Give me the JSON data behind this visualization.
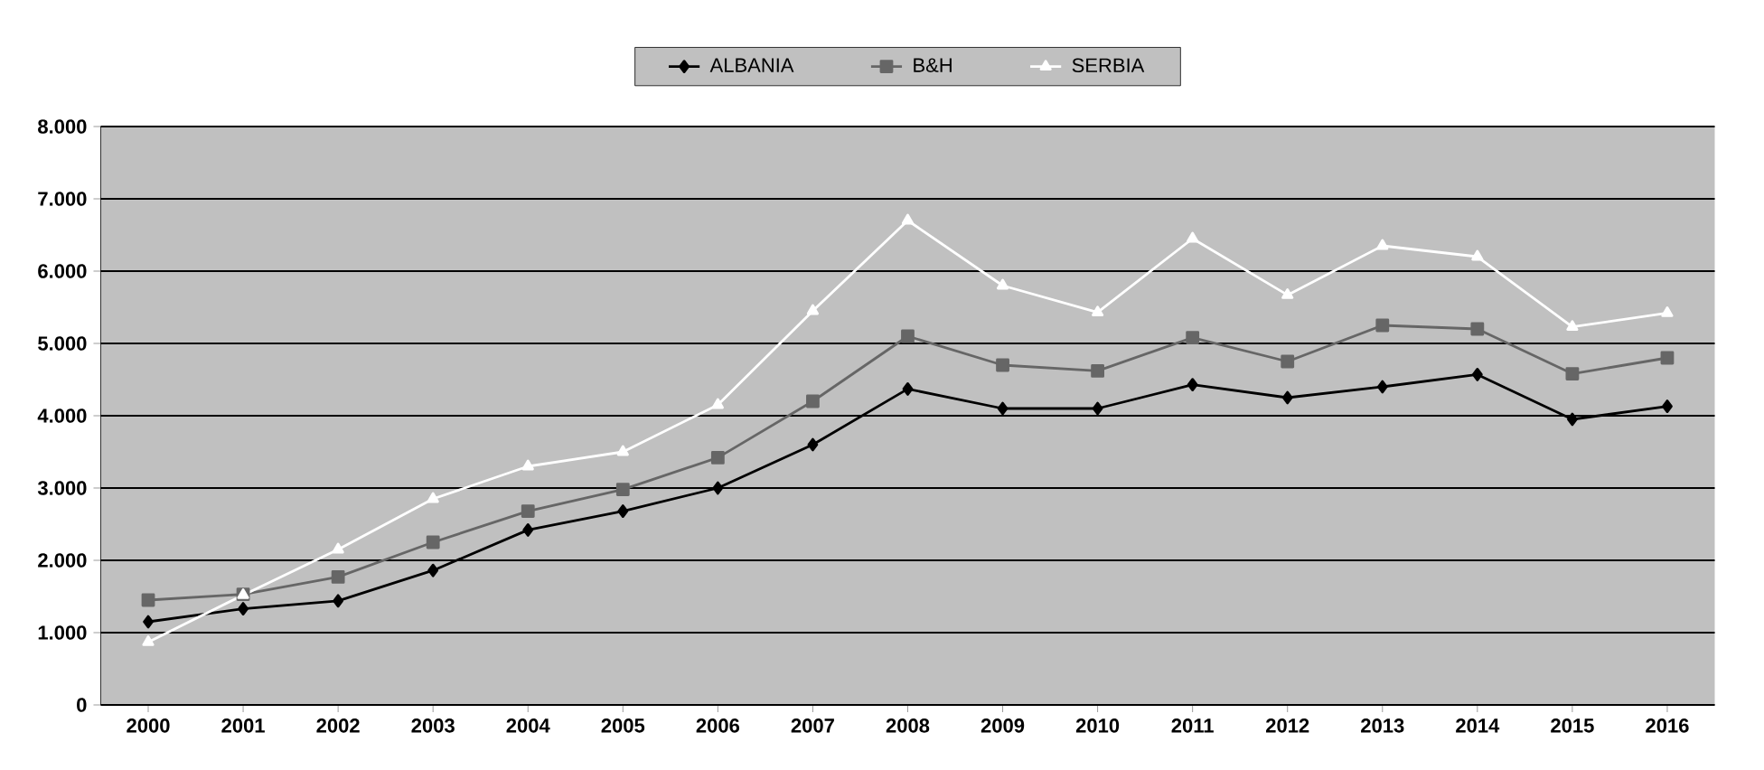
{
  "chart_data": {
    "type": "line",
    "categories": [
      "2000",
      "2001",
      "2002",
      "2003",
      "2004",
      "2005",
      "2006",
      "2007",
      "2008",
      "2009",
      "2010",
      "2011",
      "2012",
      "2013",
      "2014",
      "2015",
      "2016"
    ],
    "series": [
      {
        "name": "ALBANIA",
        "color": "#000000",
        "marker": "diamond",
        "values": [
          1150,
          1330,
          1440,
          1860,
          2420,
          2680,
          3000,
          3600,
          4370,
          4100,
          4100,
          4430,
          4250,
          4400,
          4570,
          3950,
          4130
        ]
      },
      {
        "name": "B&H",
        "color": "#666666",
        "marker": "square",
        "values": [
          1450,
          1530,
          1770,
          2250,
          2680,
          2980,
          3420,
          4200,
          5100,
          4700,
          4620,
          5080,
          4750,
          5250,
          5200,
          4580,
          4800
        ]
      },
      {
        "name": "SERBIA",
        "color": "#ffffff",
        "marker": "triangle",
        "values": [
          870,
          1520,
          2150,
          2850,
          3300,
          3500,
          4150,
          5450,
          6700,
          5800,
          5430,
          6450,
          5670,
          6350,
          6200,
          5230,
          5420
        ]
      }
    ],
    "ylim": [
      0,
      8000
    ],
    "yticks": [
      0,
      {
        "value": 1000,
        "label": "1.000"
      },
      {
        "value": 2000,
        "label": "2.000"
      },
      {
        "value": 3000,
        "label": "3.000"
      },
      {
        "value": 4000,
        "label": "4.000"
      },
      {
        "value": 5000,
        "label": "5.000"
      },
      {
        "value": 6000,
        "label": "6.000"
      },
      {
        "value": 7000,
        "label": "7.000"
      },
      {
        "value": 8000,
        "label": "8.000"
      }
    ],
    "grid": "y",
    "legend": "top"
  }
}
